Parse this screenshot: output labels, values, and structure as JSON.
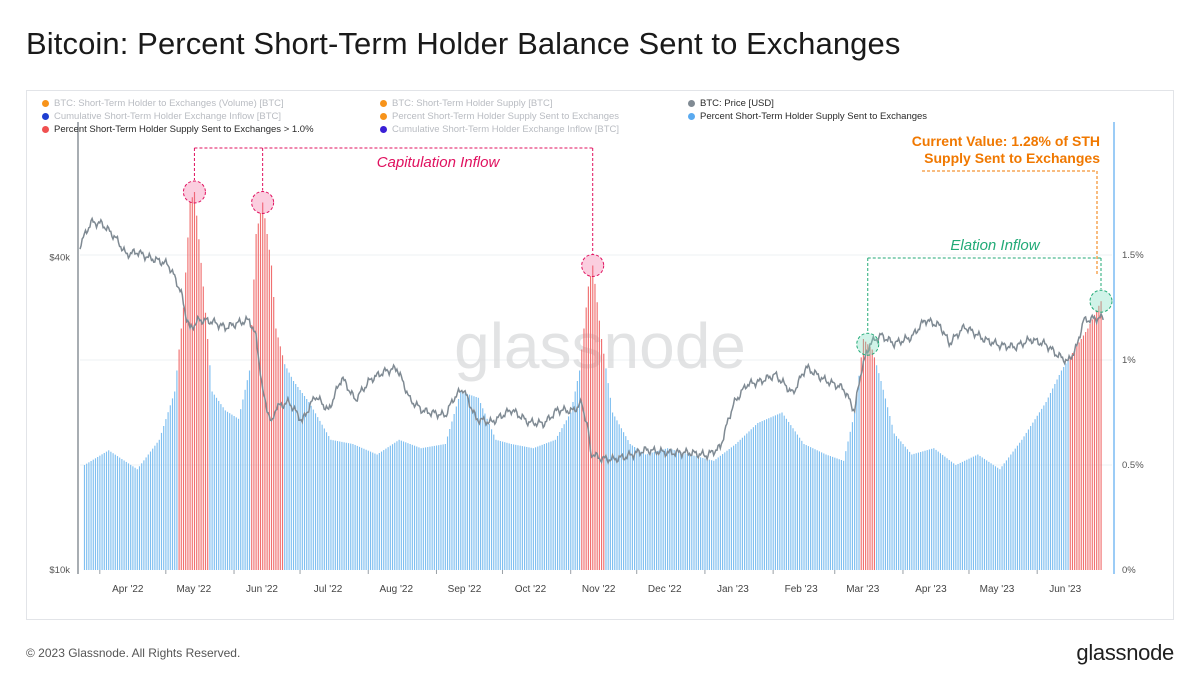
{
  "title": "Bitcoin: Percent Short-Term Holder Balance Sent to Exchanges",
  "footer": {
    "copyright": "© 2023 Glassnode. All Rights Reserved.",
    "logo": "glassnode"
  },
  "watermark": "glassnode",
  "legend": [
    {
      "label": "BTC: Short-Term Holder to Exchanges (Volume) [BTC]",
      "color": "#f7931a",
      "active": false
    },
    {
      "label": "BTC: Short-Term Holder Supply [BTC]",
      "color": "#f7931a",
      "active": false
    },
    {
      "label": "BTC: Price [USD]",
      "color": "#808a93",
      "active": true
    },
    {
      "label": "Cumulative Short-Term Holder Exchange Inflow [BTC]",
      "color": "#1f3fd1",
      "active": false
    },
    {
      "label": "Percent Short-Term Holder Supply Sent to Exchanges",
      "color": "#f7931a",
      "active": false
    },
    {
      "label": "Percent Short-Term Holder Supply Sent to Exchanges",
      "color": "#5aaaf0",
      "active": true
    },
    {
      "label": "Percent Short-Term Holder Supply Sent to Exchanges > 1.0%",
      "color": "#f05050",
      "active": true
    },
    {
      "label": "Cumulative Short-Term Holder Exchange Inflow [BTC]",
      "color": "#3a1fd6",
      "active": false
    }
  ],
  "colors": {
    "bar_normal": "#7fbff0",
    "bar_high": "#f07070",
    "price_line": "#7f8a93",
    "capitulation": "#e0115f",
    "elation": "#22aa77",
    "current": "#f07800"
  },
  "chart_data": {
    "type": "bar",
    "x_range": [
      "2022-03-23",
      "2023-07-05"
    ],
    "x_ticks": [
      "Apr '22",
      "May '22",
      "Jun '22",
      "Jul '22",
      "Aug '22",
      "Sep '22",
      "Oct '22",
      "Nov '22",
      "Dec '22",
      "Jan '23",
      "Feb '23",
      "Mar '23",
      "Apr '23",
      "May '23",
      "Jun '23"
    ],
    "left_axis": {
      "label_ticks": [
        "$40k",
        "$10k"
      ],
      "scale": "log",
      "range": [
        10000,
        64000
      ]
    },
    "right_axis": {
      "label_ticks": [
        "0%",
        "0.5%",
        "1%",
        "1.5%"
      ],
      "range": [
        0,
        2.0
      ]
    },
    "threshold": 1.0,
    "series": [
      {
        "name": "Percent Short-Term Holder Supply Sent to Exchanges",
        "dates": [
          "2022-03-25",
          "2022-04-05",
          "2022-04-18",
          "2022-04-28",
          "2022-05-05",
          "2022-05-09",
          "2022-05-12",
          "2022-05-14",
          "2022-05-18",
          "2022-05-22",
          "2022-05-28",
          "2022-06-03",
          "2022-06-08",
          "2022-06-11",
          "2022-06-14",
          "2022-06-18",
          "2022-06-20",
          "2022-06-24",
          "2022-06-28",
          "2022-07-05",
          "2022-07-15",
          "2022-07-25",
          "2022-08-05",
          "2022-08-15",
          "2022-08-25",
          "2022-09-05",
          "2022-09-12",
          "2022-09-20",
          "2022-09-28",
          "2022-10-05",
          "2022-10-15",
          "2022-10-25",
          "2022-11-01",
          "2022-11-05",
          "2022-11-09",
          "2022-11-11",
          "2022-11-15",
          "2022-11-20",
          "2022-11-28",
          "2022-12-05",
          "2022-12-15",
          "2022-12-25",
          "2023-01-05",
          "2023-01-15",
          "2023-01-25",
          "2023-02-05",
          "2023-02-15",
          "2023-02-25",
          "2023-03-05",
          "2023-03-10",
          "2023-03-14",
          "2023-03-18",
          "2023-03-22",
          "2023-03-28",
          "2023-04-05",
          "2023-04-15",
          "2023-04-25",
          "2023-05-05",
          "2023-05-15",
          "2023-05-25",
          "2023-06-05",
          "2023-06-12",
          "2023-06-18",
          "2023-06-24",
          "2023-06-30"
        ],
        "values": [
          0.5,
          0.57,
          0.48,
          0.62,
          0.85,
          1.25,
          1.75,
          1.8,
          1.35,
          0.85,
          0.76,
          0.72,
          0.95,
          1.6,
          1.75,
          1.45,
          1.15,
          0.98,
          0.9,
          0.8,
          0.62,
          0.6,
          0.55,
          0.62,
          0.58,
          0.6,
          0.85,
          0.82,
          0.62,
          0.6,
          0.58,
          0.62,
          0.75,
          0.95,
          1.35,
          1.45,
          1.1,
          0.75,
          0.6,
          0.55,
          0.58,
          0.55,
          0.52,
          0.6,
          0.7,
          0.75,
          0.6,
          0.55,
          0.52,
          0.75,
          1.1,
          1.05,
          0.9,
          0.65,
          0.55,
          0.58,
          0.5,
          0.55,
          0.48,
          0.62,
          0.8,
          0.95,
          1.05,
          1.15,
          1.28
        ]
      },
      {
        "name": "BTC: Price [USD]",
        "dates": [
          "2022-03-23",
          "2022-03-28",
          "2022-04-02",
          "2022-04-08",
          "2022-04-13",
          "2022-04-18",
          "2022-04-23",
          "2022-04-28",
          "2022-05-02",
          "2022-05-05",
          "2022-05-08",
          "2022-05-10",
          "2022-05-12",
          "2022-05-16",
          "2022-05-22",
          "2022-05-28",
          "2022-06-03",
          "2022-06-08",
          "2022-06-11",
          "2022-06-14",
          "2022-06-18",
          "2022-06-20",
          "2022-06-26",
          "2022-07-02",
          "2022-07-08",
          "2022-07-14",
          "2022-07-20",
          "2022-07-26",
          "2022-08-02",
          "2022-08-08",
          "2022-08-14",
          "2022-08-20",
          "2022-08-26",
          "2022-09-05",
          "2022-09-09",
          "2022-09-13",
          "2022-09-19",
          "2022-09-26",
          "2022-10-05",
          "2022-10-13",
          "2022-10-20",
          "2022-10-26",
          "2022-11-02",
          "2022-11-06",
          "2022-11-09",
          "2022-11-10",
          "2022-11-14",
          "2022-11-20",
          "2022-11-26",
          "2022-12-05",
          "2022-12-15",
          "2022-12-25",
          "2023-01-02",
          "2023-01-08",
          "2023-01-14",
          "2023-01-20",
          "2023-01-26",
          "2023-02-02",
          "2023-02-10",
          "2023-02-16",
          "2023-02-24",
          "2023-03-05",
          "2023-03-10",
          "2023-03-13",
          "2023-03-17",
          "2023-03-22",
          "2023-03-28",
          "2023-04-05",
          "2023-04-11",
          "2023-04-18",
          "2023-04-22",
          "2023-04-29",
          "2023-05-08",
          "2023-05-15",
          "2023-05-22",
          "2023-05-29",
          "2023-06-05",
          "2023-06-10",
          "2023-06-15",
          "2023-06-19",
          "2023-06-22",
          "2023-06-27",
          "2023-07-01"
        ],
        "values": [
          42000,
          46500,
          46200,
          43500,
          40300,
          40800,
          39800,
          39200,
          38600,
          36500,
          34000,
          31000,
          29000,
          30200,
          30000,
          29200,
          29800,
          30200,
          28000,
          22000,
          19000,
          20500,
          21000,
          19300,
          21600,
          20200,
          23400,
          21200,
          23200,
          24000,
          24400,
          21200,
          20200,
          19800,
          21400,
          22300,
          19500,
          19200,
          20300,
          19200,
          19100,
          20300,
          20200,
          20900,
          18500,
          16800,
          16400,
          16300,
          16500,
          17000,
          16800,
          16800,
          16600,
          17200,
          20800,
          22700,
          23000,
          23700,
          21800,
          24500,
          23200,
          22300,
          20200,
          24100,
          27200,
          28200,
          27200,
          28000,
          30200,
          29400,
          27200,
          29300,
          27700,
          27000,
          26800,
          27700,
          27100,
          25900,
          25100,
          26800,
          30100,
          30400,
          30500
        ]
      }
    ],
    "annotations": [
      {
        "text": "Capitulation Inflow",
        "dates": [
          "2022-05-14",
          "2022-06-14",
          "2022-11-11"
        ]
      },
      {
        "text": "Elation Inflow",
        "dates": [
          "2023-03-16",
          "2023-06-30"
        ]
      },
      {
        "text": "Current Value: 1.28% of STH Supply Sent to Exchanges",
        "line1": "Current Value: 1.28% of STH",
        "line2": "Supply Sent to Exchanges",
        "date": "2023-06-30",
        "value": 1.28
      }
    ]
  }
}
